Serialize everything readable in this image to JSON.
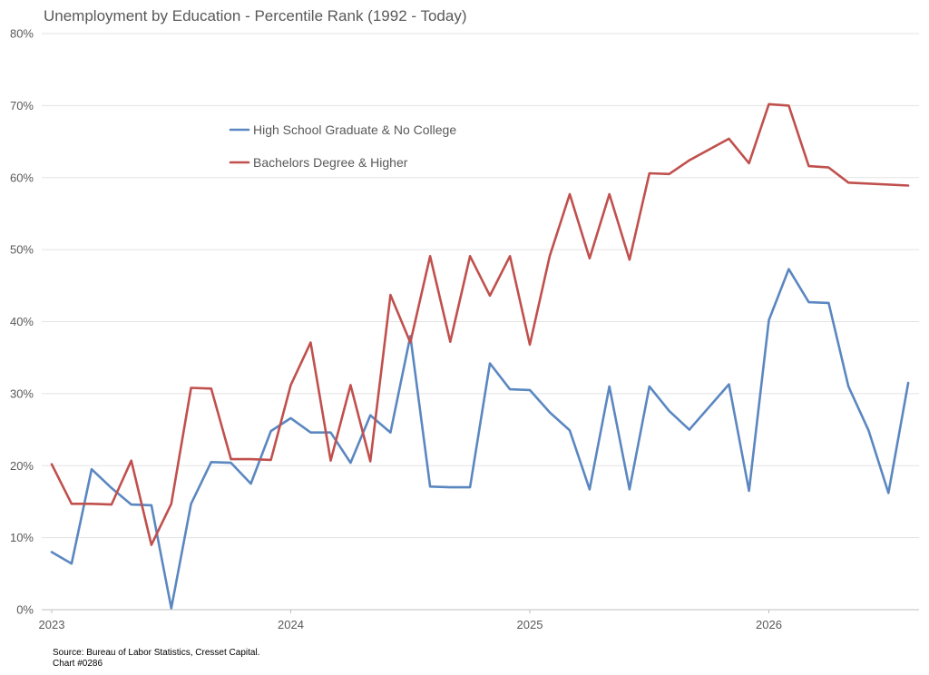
{
  "chart_data": {
    "type": "line",
    "title": "Unemployment by Education - Percentile Rank (1992 - Today)",
    "xlabel": "",
    "ylabel": "",
    "ylim": [
      0,
      80
    ],
    "y_ticks": [
      "0%",
      "10%",
      "20%",
      "30%",
      "40%",
      "50%",
      "60%",
      "70%",
      "80%"
    ],
    "x_ticks": [
      "2023",
      "2024",
      "2025",
      "2026"
    ],
    "grid": true,
    "legend_position": "upper-left inside plot",
    "series": [
      {
        "name": "High School Graduate & No College",
        "color": "#5B87C1",
        "points": [
          [
            2023.0,
            8.0
          ],
          [
            2023.083,
            6.4
          ],
          [
            2023.167,
            19.5
          ],
          [
            2023.25,
            16.9
          ],
          [
            2023.333,
            14.6
          ],
          [
            2023.417,
            14.5
          ],
          [
            2023.5,
            0.2
          ],
          [
            2023.583,
            14.7
          ],
          [
            2023.667,
            20.5
          ],
          [
            2023.75,
            20.4
          ],
          [
            2023.833,
            17.5
          ],
          [
            2023.917,
            24.8
          ],
          [
            2024.0,
            26.6
          ],
          [
            2024.083,
            24.6
          ],
          [
            2024.167,
            24.6
          ],
          [
            2024.25,
            20.4
          ],
          [
            2024.333,
            27.0
          ],
          [
            2024.417,
            24.6
          ],
          [
            2024.5,
            38.0
          ],
          [
            2024.583,
            17.1
          ],
          [
            2024.667,
            17.0
          ],
          [
            2024.75,
            17.0
          ],
          [
            2024.833,
            34.2
          ],
          [
            2024.917,
            30.6
          ],
          [
            2025.0,
            30.5
          ],
          [
            2025.083,
            27.4
          ],
          [
            2025.167,
            24.9
          ],
          [
            2025.25,
            16.7
          ],
          [
            2025.333,
            31.0
          ],
          [
            2025.417,
            16.7
          ],
          [
            2025.5,
            31.0
          ],
          [
            2025.583,
            27.6
          ],
          [
            2025.667,
            25.0
          ],
          [
            2025.833,
            31.3
          ],
          [
            2025.917,
            16.5
          ],
          [
            2026.0,
            40.2
          ],
          [
            2026.083,
            47.3
          ],
          [
            2026.167,
            42.7
          ],
          [
            2026.25,
            42.6
          ],
          [
            2026.333,
            31.0
          ],
          [
            2026.417,
            24.9
          ],
          [
            2026.5,
            16.2
          ],
          [
            2026.583,
            31.5
          ]
        ]
      },
      {
        "name": "Bachelors Degree & Higher",
        "color": "#C0504D",
        "points": [
          [
            2023.0,
            20.2
          ],
          [
            2023.083,
            14.7
          ],
          [
            2023.167,
            14.7
          ],
          [
            2023.25,
            14.6
          ],
          [
            2023.333,
            20.7
          ],
          [
            2023.417,
            9.0
          ],
          [
            2023.5,
            14.7
          ],
          [
            2023.583,
            30.8
          ],
          [
            2023.667,
            30.7
          ],
          [
            2023.75,
            20.9
          ],
          [
            2023.833,
            20.9
          ],
          [
            2023.917,
            20.8
          ],
          [
            2024.0,
            31.2
          ],
          [
            2024.083,
            37.1
          ],
          [
            2024.167,
            20.7
          ],
          [
            2024.25,
            31.2
          ],
          [
            2024.333,
            20.6
          ],
          [
            2024.417,
            43.7
          ],
          [
            2024.5,
            37.1
          ],
          [
            2024.583,
            49.1
          ],
          [
            2024.667,
            37.2
          ],
          [
            2024.75,
            49.1
          ],
          [
            2024.833,
            43.6
          ],
          [
            2024.917,
            49.1
          ],
          [
            2025.0,
            36.8
          ],
          [
            2025.083,
            49.1
          ],
          [
            2025.167,
            57.7
          ],
          [
            2025.25,
            48.8
          ],
          [
            2025.333,
            57.7
          ],
          [
            2025.417,
            48.6
          ],
          [
            2025.5,
            60.6
          ],
          [
            2025.583,
            60.5
          ],
          [
            2025.667,
            62.4
          ],
          [
            2025.833,
            65.4
          ],
          [
            2025.917,
            62.0
          ],
          [
            2026.0,
            70.2
          ],
          [
            2026.083,
            70.0
          ],
          [
            2026.167,
            61.6
          ],
          [
            2026.25,
            61.4
          ],
          [
            2026.333,
            59.3
          ],
          [
            2026.583,
            58.9
          ]
        ]
      }
    ]
  },
  "footnote": {
    "source": "Source: Bureau of Labor Statistics, Cresset Capital.",
    "chart_id": "Chart #0286"
  }
}
